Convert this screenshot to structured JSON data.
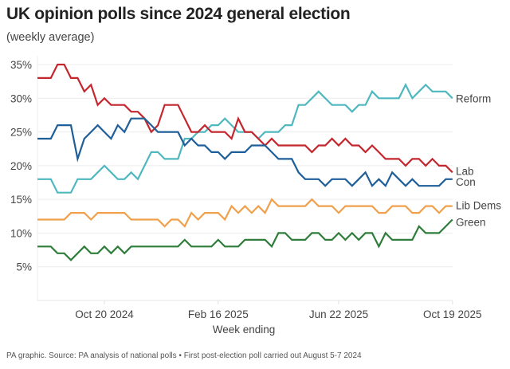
{
  "header": {
    "title": "UK opinion polls since 2024 general election",
    "subtitle": "(weekly average)"
  },
  "footer": {
    "source": "PA graphic. Source: PA analysis of national polls • First post-election poll carried out August 5-7 2024"
  },
  "chart_data": {
    "type": "line",
    "title": "UK opinion polls since 2024 general election",
    "subtitle": "(weekly average)",
    "xlabel": "Week ending",
    "ylabel": "",
    "ylim": [
      0,
      35
    ],
    "yticks": [
      5,
      10,
      15,
      20,
      25,
      30,
      35
    ],
    "ytick_labels": [
      "5%",
      "10%",
      "15%",
      "20%",
      "25%",
      "30%",
      "35%"
    ],
    "x_start": "Aug 11 2024",
    "x_interval": "weekly",
    "n_points": 63,
    "xticks": [
      {
        "index": 10,
        "label": "Oct 20 2024"
      },
      {
        "index": 27,
        "label": "Feb 16 2025"
      },
      {
        "index": 45,
        "label": "Jun 22 2025"
      },
      {
        "index": 62,
        "label": "Oct 19 2025"
      }
    ],
    "grid": "horizontal",
    "legend": "end-of-line labels (right)",
    "series": [
      {
        "name": "Reform",
        "color": "#4fb8bf",
        "values": [
          18,
          18,
          18,
          16,
          16,
          16,
          18,
          18,
          18,
          19,
          20,
          19,
          18,
          18,
          19,
          18,
          20,
          22,
          22,
          21,
          21,
          21,
          24,
          24,
          25,
          25,
          26,
          26,
          27,
          26,
          25,
          25,
          25,
          24,
          25,
          25,
          25,
          26,
          26,
          29,
          29,
          30,
          31,
          30,
          29,
          29,
          29,
          28,
          29,
          29,
          31,
          30,
          30,
          30,
          30,
          32,
          30,
          31,
          32,
          31,
          31,
          31,
          30
        ]
      },
      {
        "name": "Lab",
        "color": "#c4262e",
        "values": [
          33,
          33,
          33,
          35,
          35,
          33,
          33,
          31,
          32,
          29,
          30,
          29,
          29,
          29,
          28,
          28,
          27,
          25,
          26,
          29,
          29,
          29,
          27,
          25,
          25,
          26,
          25,
          25,
          25,
          24,
          27,
          25,
          25,
          24,
          23,
          24,
          23,
          23,
          23,
          23,
          23,
          22,
          23,
          23,
          24,
          23,
          24,
          23,
          23,
          22,
          23,
          22,
          21,
          21,
          21,
          20,
          21,
          21,
          20,
          21,
          20,
          20,
          19
        ]
      },
      {
        "name": "Con",
        "color": "#1f5f99",
        "values": [
          24,
          24,
          24,
          26,
          26,
          26,
          21,
          24,
          25,
          26,
          25,
          24,
          26,
          25,
          27,
          27,
          27,
          26,
          25,
          25,
          25,
          25,
          23,
          24,
          23,
          23,
          22,
          22,
          21,
          22,
          22,
          22,
          23,
          23,
          23,
          22,
          21,
          21,
          21,
          19,
          18,
          18,
          18,
          17,
          18,
          18,
          18,
          17,
          18,
          19,
          17,
          18,
          17,
          19,
          18,
          17,
          18,
          17,
          17,
          17,
          17,
          18,
          18
        ]
      },
      {
        "name": "Lib Dems",
        "color": "#f0a04b",
        "values": [
          12,
          12,
          12,
          12,
          12,
          13,
          13,
          13,
          12,
          13,
          13,
          13,
          13,
          13,
          12,
          12,
          12,
          12,
          12,
          11,
          12,
          12,
          11,
          13,
          12,
          13,
          13,
          13,
          12,
          14,
          13,
          14,
          13,
          14,
          13,
          15,
          14,
          14,
          14,
          14,
          14,
          15,
          14,
          14,
          14,
          13,
          14,
          14,
          14,
          14,
          14,
          13,
          13,
          14,
          14,
          14,
          13,
          13,
          14,
          14,
          13,
          14,
          14
        ]
      },
      {
        "name": "Green",
        "color": "#2e7d3a",
        "values": [
          8,
          8,
          8,
          7,
          7,
          6,
          7,
          8,
          7,
          7,
          8,
          7,
          8,
          7,
          8,
          8,
          8,
          8,
          8,
          8,
          8,
          8,
          9,
          8,
          8,
          8,
          8,
          9,
          8,
          8,
          8,
          9,
          9,
          9,
          9,
          8,
          10,
          10,
          9,
          9,
          9,
          10,
          10,
          9,
          9,
          10,
          9,
          10,
          9,
          10,
          10,
          8,
          10,
          9,
          9,
          9,
          9,
          11,
          10,
          10,
          10,
          11,
          12
        ]
      }
    ]
  }
}
